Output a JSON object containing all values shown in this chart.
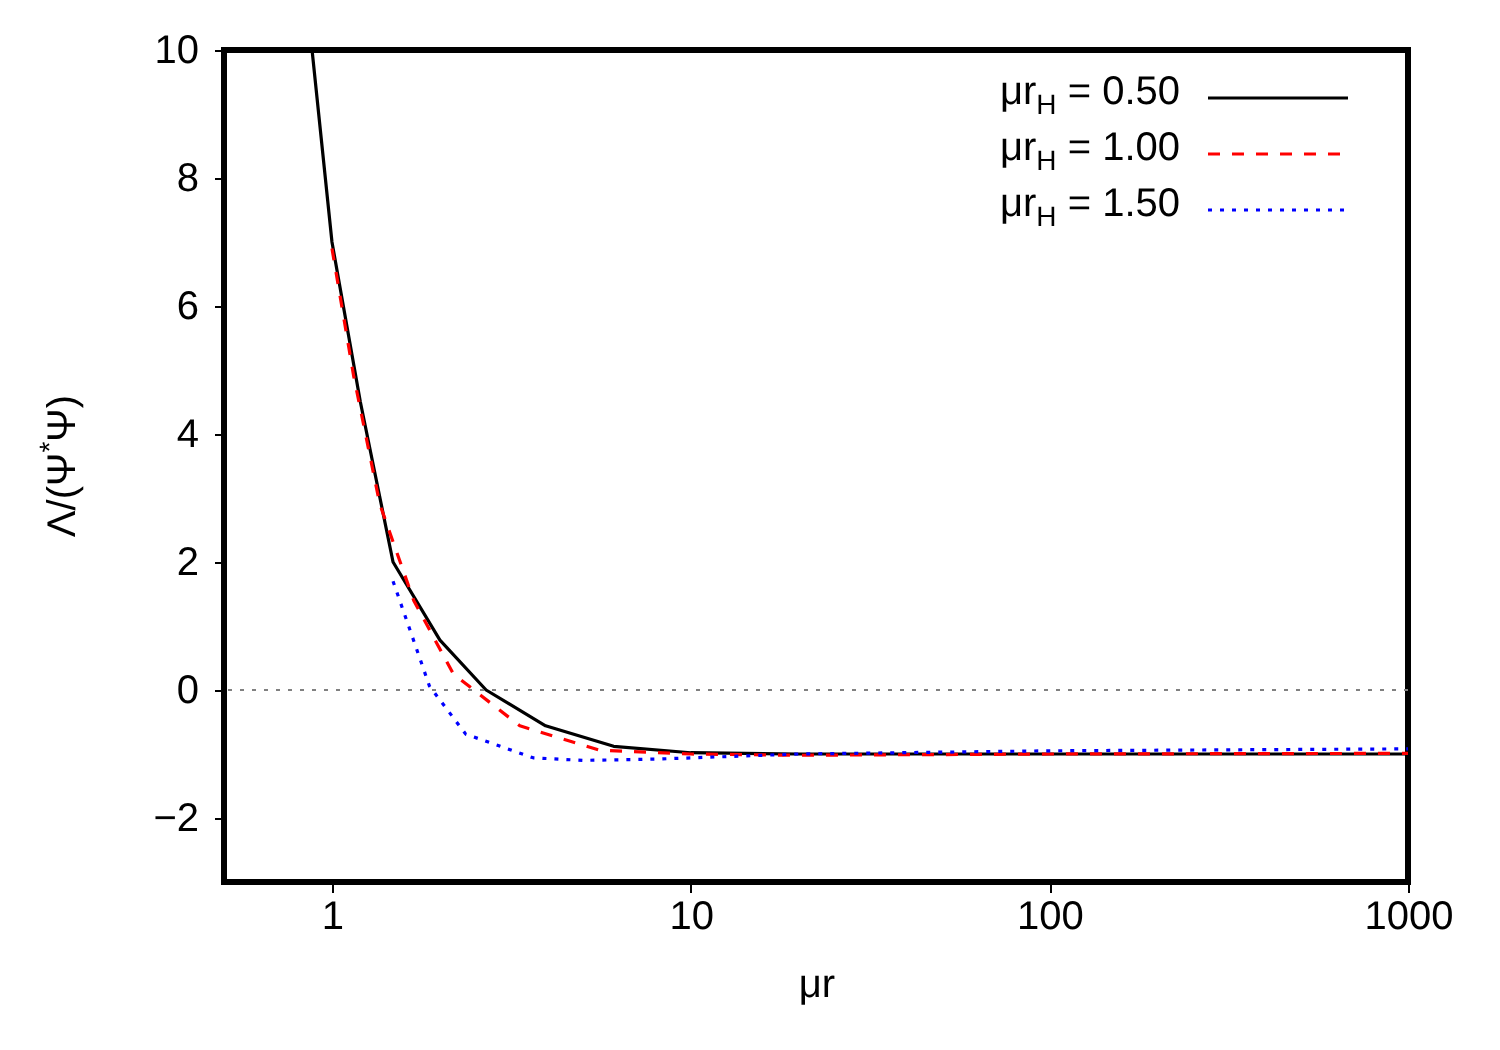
{
  "chart_data": {
    "type": "line",
    "xlabel": "μr",
    "ylabel": "Λ/(Ψ$^{*}$Ψ)",
    "log": "x",
    "xlim": [
      0.5,
      1000
    ],
    "xticks": [
      1,
      10,
      100,
      1000
    ],
    "ylim": [
      -3,
      10
    ],
    "yticks": [
      -2,
      0,
      2,
      4,
      6,
      8,
      10
    ],
    "legend": "top right",
    "grid": false,
    "ref_lines": [
      {
        "axis": "y",
        "value": 0,
        "color": "#808080",
        "line_style": "dotted"
      }
    ],
    "series": [
      {
        "name": "μr$_{H}$ = 0.50",
        "color": "#000000",
        "line_style": "solid",
        "x": [
          0.88,
          1,
          1.2,
          1.48,
          2,
          2.69,
          3.94,
          6.1,
          10,
          20,
          100,
          1000
        ],
        "values": [
          10,
          7.0,
          4.5,
          2.0,
          0.78,
          0,
          -0.56,
          -0.88,
          -0.98,
          -1.0,
          -1.0,
          -1.0
        ]
      },
      {
        "name": "μr$_{H}$ = 1.00",
        "color": "#ff0000",
        "line_style": "dashed",
        "x": [
          1,
          1.15,
          1.36,
          1.69,
          2.18,
          3.34,
          5.58,
          10,
          20,
          100,
          1000
        ],
        "values": [
          6.9,
          4.9,
          2.9,
          1.4,
          0.25,
          -0.56,
          -0.94,
          -1.0,
          -1.02,
          -1.0,
          -0.99
        ]
      },
      {
        "name": "μr$_{H}$ = 1.50",
        "color": "#0000ff",
        "line_style": "dotted",
        "x": [
          1.48,
          1.87,
          2.36,
          3.64,
          5,
          8,
          20,
          100,
          1000
        ],
        "values": [
          1.7,
          0.06,
          -0.69,
          -1.06,
          -1.1,
          -1.08,
          -1.0,
          -0.95,
          -0.92
        ]
      }
    ]
  }
}
